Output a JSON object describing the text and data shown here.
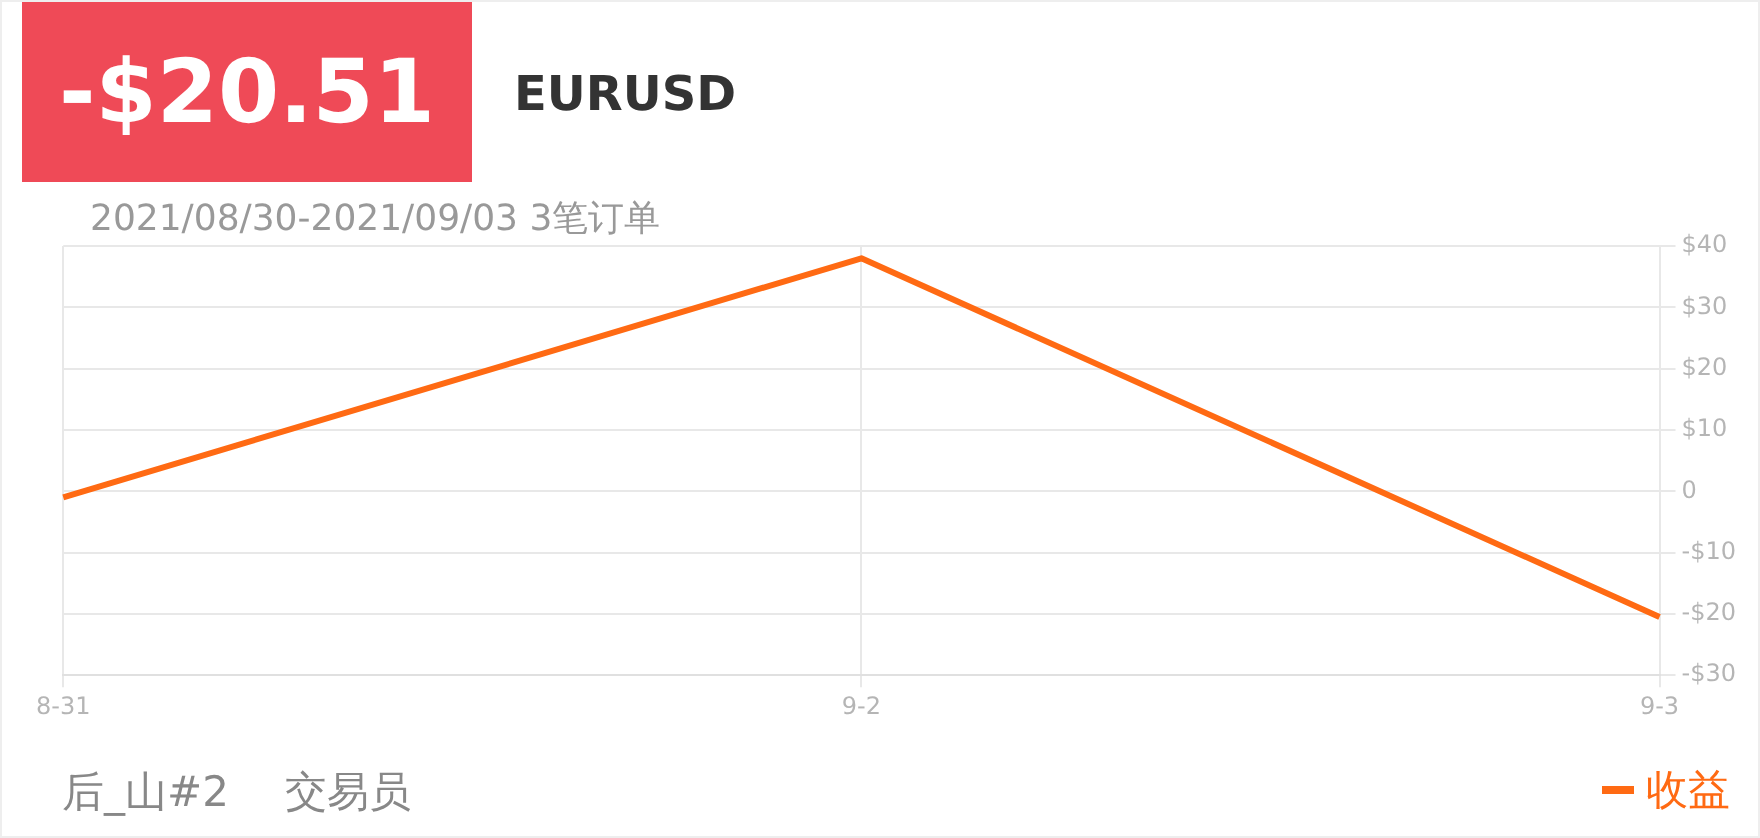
{
  "chart_data": {
    "type": "line",
    "title": "-$20.51",
    "subtitle": "EURUSD",
    "annotations": [
      "2021/08/30-2021/09/03 3笔订单",
      "后_山#2",
      "交易员"
    ],
    "categories": [
      "8-31",
      "9-2",
      "9-3"
    ],
    "series": [
      {
        "name": "收益",
        "color": "#ff6a13",
        "values": [
          -1,
          38,
          -20.5
        ]
      }
    ],
    "ylim": [
      -30,
      40
    ],
    "yticks": [
      {
        "value": -30,
        "label": "-$30"
      },
      {
        "value": -20,
        "label": "-$20"
      },
      {
        "value": -10,
        "label": "-$10"
      },
      0,
      {
        "value": 10,
        "label": "$10"
      },
      {
        "value": 20,
        "label": "$20"
      },
      {
        "value": 30,
        "label": "$30"
      },
      {
        "value": 40,
        "label": "$40"
      }
    ],
    "grid": true,
    "legend": "bottom right",
    "marker": "none",
    "line_style": "solid"
  }
}
